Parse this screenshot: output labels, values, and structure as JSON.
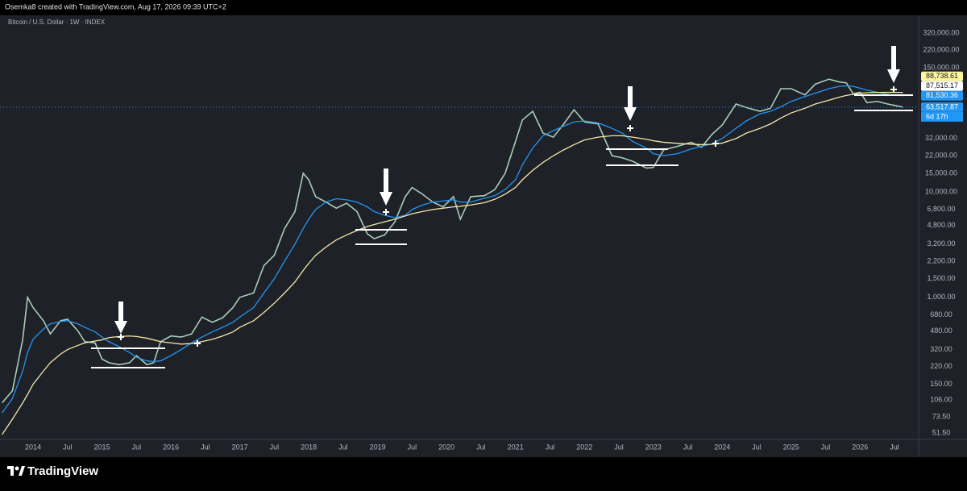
{
  "header": {
    "attribution": "Osemka8 created with TradingView.com, Aug 17, 2026 09:39 UTC+2"
  },
  "chart_data": {
    "type": "line",
    "title": "Bitcoin / U.S. Dollar · 1W · INDEX",
    "log_scale": true,
    "x": [
      2013.55,
      2013.7,
      2013.85,
      2013.92,
      2014.0,
      2014.15,
      2014.25,
      2014.4,
      2014.5,
      2014.65,
      2014.75,
      2014.9,
      2015.0,
      2015.1,
      2015.25,
      2015.4,
      2015.5,
      2015.65,
      2015.75,
      2015.85,
      2016.0,
      2016.15,
      2016.3,
      2016.45,
      2016.6,
      2016.75,
      2016.9,
      2017.0,
      2017.2,
      2017.35,
      2017.5,
      2017.65,
      2017.8,
      2017.92,
      2018.0,
      2018.1,
      2018.25,
      2018.4,
      2018.55,
      2018.7,
      2018.85,
      2018.95,
      2019.1,
      2019.25,
      2019.4,
      2019.5,
      2019.65,
      2019.8,
      2019.95,
      2020.1,
      2020.2,
      2020.35,
      2020.55,
      2020.7,
      2020.85,
      2021.0,
      2021.1,
      2021.25,
      2021.4,
      2021.55,
      2021.7,
      2021.85,
      2022.0,
      2022.2,
      2022.4,
      2022.55,
      2022.7,
      2022.9,
      2023.0,
      2023.15,
      2023.35,
      2023.55,
      2023.7,
      2023.85,
      2024.0,
      2024.2,
      2024.35,
      2024.55,
      2024.7,
      2024.85,
      2025.0,
      2025.2,
      2025.35,
      2025.55,
      2025.7,
      2025.8,
      2025.9,
      2026.0,
      2026.1,
      2026.25,
      2026.4,
      2026.55,
      2026.62
    ],
    "series": [
      {
        "color": "#a8cdb6",
        "values": [
          100,
          130,
          400,
          1000,
          800,
          600,
          450,
          600,
          620,
          480,
          380,
          370,
          260,
          240,
          230,
          240,
          280,
          230,
          240,
          380,
          430,
          420,
          450,
          650,
          580,
          640,
          800,
          1000,
          1100,
          2000,
          2500,
          4500,
          6500,
          15000,
          13000,
          9000,
          8000,
          7000,
          7800,
          6500,
          4000,
          3600,
          3900,
          5200,
          9000,
          11000,
          9500,
          8000,
          7200,
          9000,
          5500,
          9000,
          9200,
          10500,
          15000,
          30000,
          48000,
          58000,
          36000,
          33000,
          44000,
          60000,
          46000,
          44000,
          22000,
          21000,
          19500,
          16800,
          17000,
          25000,
          27000,
          29500,
          26500,
          35000,
          43000,
          68000,
          63000,
          58000,
          62000,
          95000,
          95000,
          83000,
          105000,
          117000,
          110000,
          108000,
          85000,
          88000,
          70000,
          72000,
          68000,
          65000,
          63517.87
        ]
      },
      {
        "color": "#2196f3",
        "values": [
          80,
          110,
          200,
          300,
          400,
          500,
          560,
          590,
          600,
          560,
          520,
          470,
          420,
          380,
          340,
          300,
          270,
          250,
          245,
          250,
          280,
          320,
          370,
          420,
          470,
          520,
          580,
          650,
          800,
          1100,
          1500,
          2200,
          3200,
          4500,
          5500,
          6800,
          8000,
          8600,
          8400,
          8000,
          7200,
          6500,
          6000,
          5700,
          6000,
          6800,
          7500,
          8000,
          8200,
          8400,
          8000,
          8000,
          8700,
          9200,
          10500,
          13000,
          18000,
          26000,
          34000,
          38000,
          42000,
          46000,
          47000,
          45000,
          40000,
          36000,
          30000,
          26000,
          23000,
          22000,
          23000,
          25500,
          27000,
          28500,
          32000,
          40000,
          47000,
          55000,
          58000,
          64000,
          72000,
          80000,
          86000,
          95000,
          100000,
          101000,
          100000,
          96000,
          92000,
          88000,
          84000,
          82000,
          81530.36
        ]
      },
      {
        "color": "#f3e7a9",
        "values": [
          50,
          70,
          100,
          120,
          150,
          200,
          240,
          290,
          320,
          350,
          370,
          385,
          395,
          415,
          425,
          430,
          425,
          410,
          395,
          380,
          370,
          360,
          365,
          380,
          400,
          430,
          470,
          520,
          600,
          720,
          880,
          1100,
          1400,
          1800,
          2100,
          2500,
          3000,
          3500,
          3900,
          4300,
          4700,
          4900,
          5200,
          5500,
          5900,
          6200,
          6500,
          6800,
          7000,
          7200,
          7300,
          7500,
          7900,
          8500,
          9500,
          11000,
          13000,
          16000,
          19000,
          22000,
          25000,
          28000,
          31000,
          33000,
          34000,
          34000,
          33000,
          31500,
          30500,
          29500,
          28800,
          28300,
          28000,
          28200,
          29000,
          32000,
          36000,
          40000,
          44000,
          50000,
          56000,
          62000,
          68000,
          74000,
          79000,
          82000,
          84000,
          86000,
          87000,
          87500,
          87700,
          87600,
          87515.17
        ]
      }
    ],
    "xlim": [
      2013.52,
      2026.85
    ],
    "xticks": [
      2014,
      {
        "value": 2014.5,
        "label": "Jul"
      },
      2015,
      {
        "value": 2015.5,
        "label": "Jul"
      },
      2016,
      {
        "value": 2016.5,
        "label": "Jul"
      },
      2017,
      {
        "value": 2017.5,
        "label": "Jul"
      },
      2018,
      {
        "value": 2018.5,
        "label": "Jul"
      },
      2019,
      {
        "value": 2019.5,
        "label": "Jul"
      },
      2020,
      {
        "value": 2020.5,
        "label": "Jul"
      },
      2021,
      {
        "value": 2021.5,
        "label": "Jul"
      },
      2022,
      {
        "value": 2022.5,
        "label": "Jul"
      },
      2023,
      {
        "value": 2023.5,
        "label": "Jul"
      },
      2024,
      {
        "value": 2024.5,
        "label": "Jul"
      },
      2025,
      {
        "value": 2025.5,
        "label": "Jul"
      },
      2026,
      {
        "value": 2026.5,
        "label": "Jul"
      }
    ],
    "ylim": [
      45,
      463000
    ],
    "yticks": [
      {
        "value": 320000,
        "label": "320,000.00"
      },
      {
        "value": 220000,
        "label": "220,000.00"
      },
      {
        "value": 150000,
        "label": "150,000.00"
      },
      {
        "value": 32000,
        "label": "32,000.00"
      },
      {
        "value": 22000,
        "label": "22,000.00"
      },
      {
        "value": 15000,
        "label": "15,000.00"
      },
      {
        "value": 10000,
        "label": "10,000.00"
      },
      {
        "value": 6800,
        "label": "6,800.00"
      },
      {
        "value": 4800,
        "label": "4,800.00"
      },
      {
        "value": 3200,
        "label": "3,200.00"
      },
      {
        "value": 2200,
        "label": "2,200.00"
      },
      {
        "value": 1500,
        "label": "1,500.00"
      },
      {
        "value": 1000,
        "label": "1,000.00"
      },
      {
        "value": 680,
        "label": "680.00"
      },
      {
        "value": 480,
        "label": "480.00"
      },
      {
        "value": 320,
        "label": "320.00"
      },
      {
        "value": 220,
        "label": "220.00"
      },
      {
        "value": 150,
        "label": "150.00"
      },
      {
        "value": 106,
        "label": "106.00"
      },
      {
        "value": 73.5,
        "label": "73.50"
      },
      {
        "value": 51.5,
        "label": "51.50"
      }
    ],
    "price_labels": [
      {
        "value": 88738.61,
        "label": "88,738.61",
        "color": "#fff59d",
        "text_color": "#131722"
      },
      {
        "value": 87515.17,
        "label": "87,515.17",
        "color": "#ffffff",
        "text_color": "#131722"
      },
      {
        "value": 81530.36,
        "label": "81,530.36",
        "color": "#2196f3",
        "text_color": "#ffffff"
      },
      {
        "value": 63517.87,
        "label": "63,517.87",
        "color": "#2196f3",
        "text_color": "#ffffff"
      }
    ],
    "countdown": "6d 17h"
  },
  "footer": {
    "brand": "TradingView"
  }
}
